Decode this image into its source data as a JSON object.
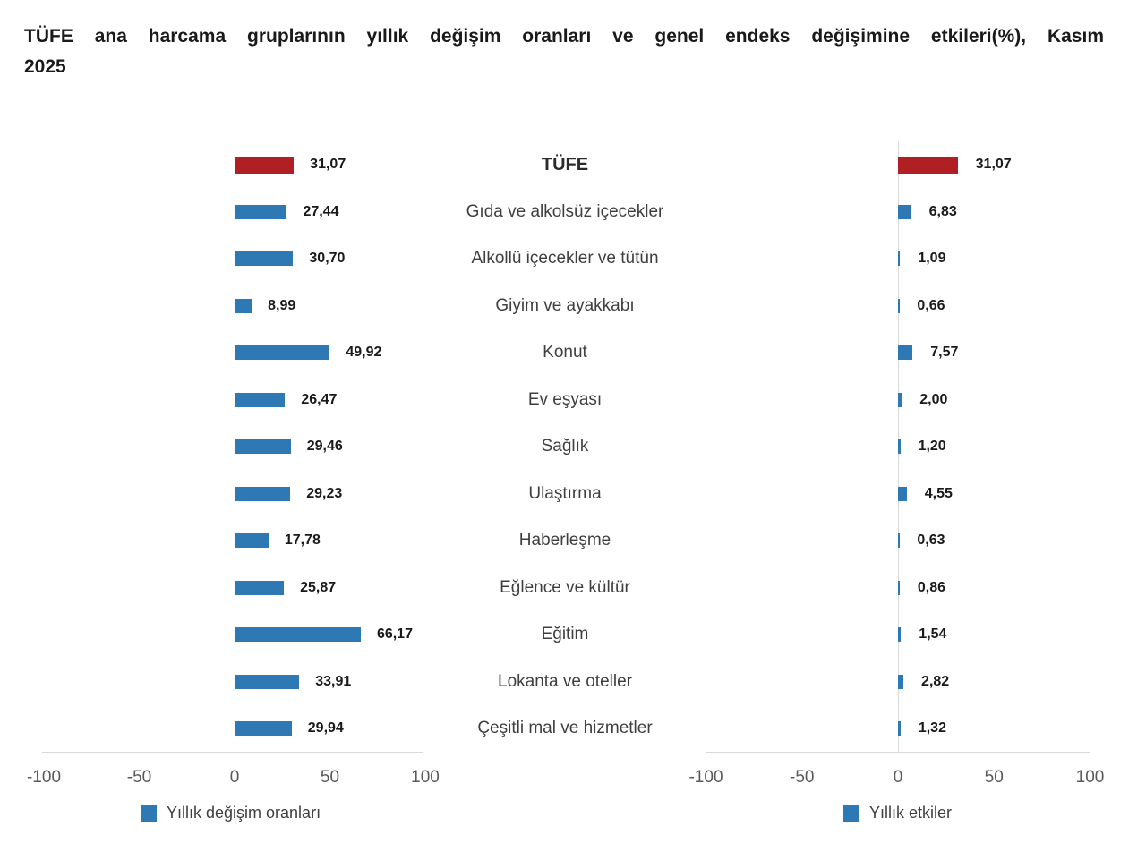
{
  "title": {
    "line1": "TÜFE ana harcama gruplarının yıllık değişim oranları ve genel endeks değişimine etkileri(%), Kasım",
    "line2": "2025"
  },
  "chart_data": {
    "type": "bar",
    "orientation": "horizontal",
    "title": "TÜFE ana harcama gruplarının yıllık değişim oranları ve genel endeks değişimine etkileri(%), Kasım 2025",
    "categories": [
      "TÜFE",
      "Gıda ve alkolsüz içecekler",
      "Alkollü içecekler ve tütün",
      "Giyim ve ayakkabı",
      "Konut",
      "Ev eşyası",
      "Sağlık",
      "Ulaştırma",
      "Haberleşme",
      "Eğlence ve kültür",
      "Eğitim",
      "Lokanta ve oteller",
      "Çeşitli mal ve hizmetler"
    ],
    "series": [
      {
        "name": "Yıllık değişim oranları",
        "values": [
          31.07,
          27.44,
          30.7,
          8.99,
          49.92,
          26.47,
          29.46,
          29.23,
          17.78,
          25.87,
          66.17,
          33.91,
          29.94
        ]
      },
      {
        "name": "Yıllık etkiler",
        "values": [
          31.07,
          6.83,
          1.09,
          0.66,
          7.57,
          2.0,
          1.2,
          4.55,
          0.63,
          0.86,
          1.54,
          2.82,
          1.32
        ]
      }
    ],
    "xlim": [
      -100,
      100
    ],
    "x_ticks": [
      -100,
      -50,
      0,
      50,
      100
    ],
    "value_format": "decimal-comma",
    "highlight_category": "TÜFE",
    "grid": "zero-line-only",
    "legend_position": "bottom",
    "colors": {
      "bar": "#2E78B4",
      "highlight": "#B01F24",
      "axis_line": "#D9D9D9",
      "value_label": "#1A1A1A",
      "category_label": "#3F3F3F",
      "tick_label": "#595959"
    }
  }
}
